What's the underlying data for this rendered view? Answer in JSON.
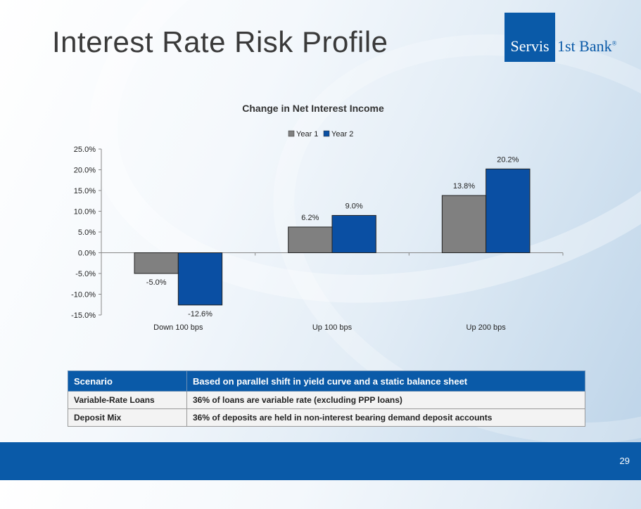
{
  "slide": {
    "title": "Interest Rate Risk Profile",
    "page_number": "29"
  },
  "logo": {
    "boxed_text": "Servis",
    "rest_text": "1st Bank",
    "mark": "®"
  },
  "colors": {
    "brand_blue": "#0a5aa8",
    "year1_gray": "#808080",
    "year2_blue": "#0a4fa3"
  },
  "chart_data": {
    "type": "bar",
    "title": "Change in Net Interest Income",
    "categories": [
      "Down 100 bps",
      "Up 100 bps",
      "Up 200 bps"
    ],
    "series": [
      {
        "name": "Year 1",
        "values": [
          -5.0,
          6.2,
          13.8
        ],
        "labels": [
          "-5.0%",
          "6.2%",
          "13.8%"
        ]
      },
      {
        "name": "Year 2",
        "values": [
          -12.6,
          9.0,
          20.2
        ],
        "labels": [
          "-12.6%",
          "9.0%",
          "20.2%"
        ]
      }
    ],
    "ylim": [
      -15,
      25
    ],
    "yticks": [
      "25.0%",
      "20.0%",
      "15.0%",
      "10.0%",
      "5.0%",
      "0.0%",
      "-5.0%",
      "-10.0%",
      "-15.0%"
    ],
    "ytick_values": [
      25,
      20,
      15,
      10,
      5,
      0,
      -5,
      -10,
      -15
    ],
    "legend_position": "top-center",
    "grid": false
  },
  "table": {
    "header": [
      "Scenario",
      "Based on parallel shift in yield curve and a static balance sheet"
    ],
    "rows": [
      [
        "Variable-Rate Loans",
        "36% of loans are variable rate (excluding PPP loans)"
      ],
      [
        "Deposit Mix",
        "36% of deposits are held in non-interest bearing demand deposit accounts"
      ]
    ]
  }
}
